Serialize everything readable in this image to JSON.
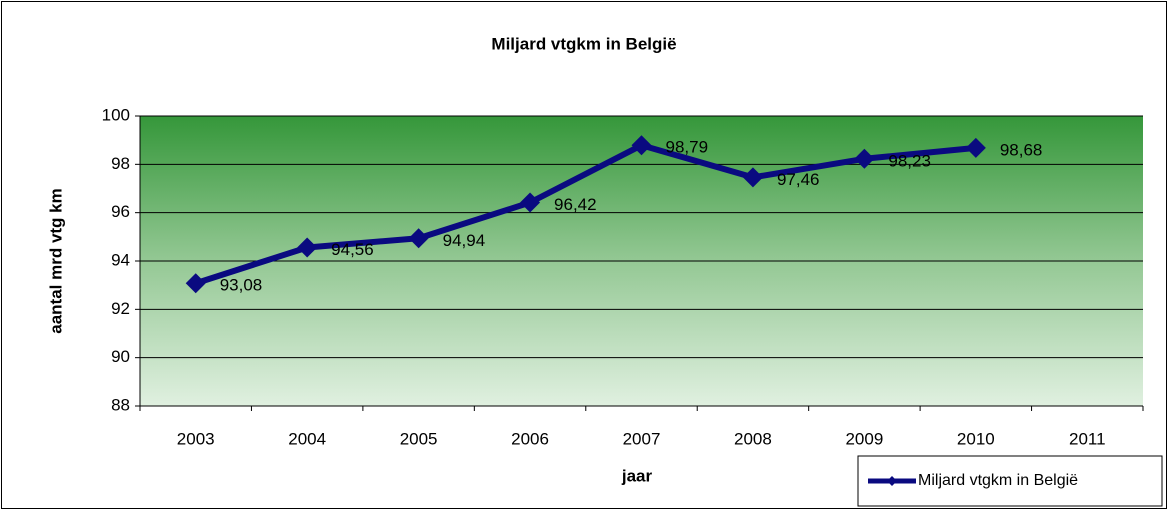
{
  "chart_data": {
    "type": "line",
    "title": "Miljard vtgkm in België",
    "xlabel": "jaar",
    "ylabel": "aantal mrd vtg km",
    "categories": [
      "2003",
      "2004",
      "2005",
      "2006",
      "2007",
      "2008",
      "2009",
      "2010",
      "2011"
    ],
    "series": [
      {
        "name": "Miljard vtgkm in België",
        "color": "#0a0a80",
        "values": [
          93.08,
          94.56,
          94.94,
          96.42,
          98.79,
          97.46,
          98.23,
          98.68,
          null
        ],
        "value_labels": [
          "93,08",
          "94,56",
          "94,94",
          "96,42",
          "98,79",
          "97,46",
          "98,23",
          "98,68",
          null
        ]
      }
    ],
    "ylim": [
      88,
      100
    ],
    "yticks": [
      88,
      90,
      92,
      94,
      96,
      98,
      100
    ],
    "grid": true,
    "legend": "lower right"
  }
}
